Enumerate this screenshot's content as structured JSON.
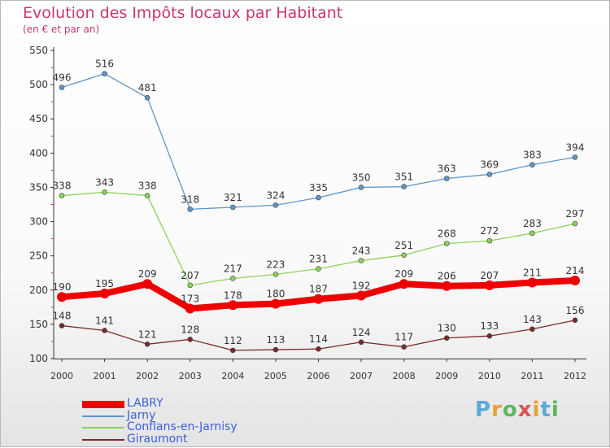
{
  "header": {
    "title": "Evolution des Impôts locaux par Habitant",
    "subtitle": "(en € et par an)"
  },
  "logo": {
    "text": "Proxiti",
    "letters": [
      {
        "ch": "P",
        "color": "#5aa9d6"
      },
      {
        "ch": "r",
        "color": "#e8a03a"
      },
      {
        "ch": "o",
        "color": "#5cb85c"
      },
      {
        "ch": "x",
        "color": "#d9534f"
      },
      {
        "ch": "i",
        "color": "#e8a03a"
      },
      {
        "ch": "t",
        "color": "#5aa9d6"
      },
      {
        "ch": "i",
        "color": "#5cb85c"
      }
    ]
  },
  "chart_data": {
    "type": "line",
    "title": "Evolution des Impôts locaux par Habitant",
    "subtitle": "(en € et par an)",
    "categories": [
      "2000",
      "2001",
      "2002",
      "2003",
      "2004",
      "2005",
      "2006",
      "2007",
      "2008",
      "2009",
      "2010",
      "2011",
      "2012"
    ],
    "ylim": [
      100,
      550
    ],
    "yticks": [
      100,
      150,
      200,
      250,
      300,
      350,
      400,
      450,
      500,
      550
    ],
    "grid": false,
    "legend_position": "bottom-left",
    "series": [
      {
        "name": "LABRY",
        "color": "#ee0000",
        "values": [
          190,
          195,
          209,
          173,
          178,
          180,
          187,
          192,
          209,
          206,
          207,
          211,
          214
        ]
      },
      {
        "name": "Jarny",
        "color": "#5f96c8",
        "values": [
          496,
          516,
          481,
          318,
          321,
          324,
          335,
          350,
          351,
          363,
          369,
          383,
          394
        ]
      },
      {
        "name": "Conflans-en-Jarnisy",
        "color": "#8cd15a",
        "values": [
          338,
          343,
          338,
          207,
          217,
          223,
          231,
          243,
          251,
          268,
          272,
          283,
          297
        ]
      },
      {
        "name": "Giraumont",
        "color": "#7a2a2a",
        "values": [
          148,
          141,
          121,
          128,
          112,
          113,
          114,
          124,
          117,
          130,
          133,
          143,
          156
        ]
      }
    ]
  }
}
